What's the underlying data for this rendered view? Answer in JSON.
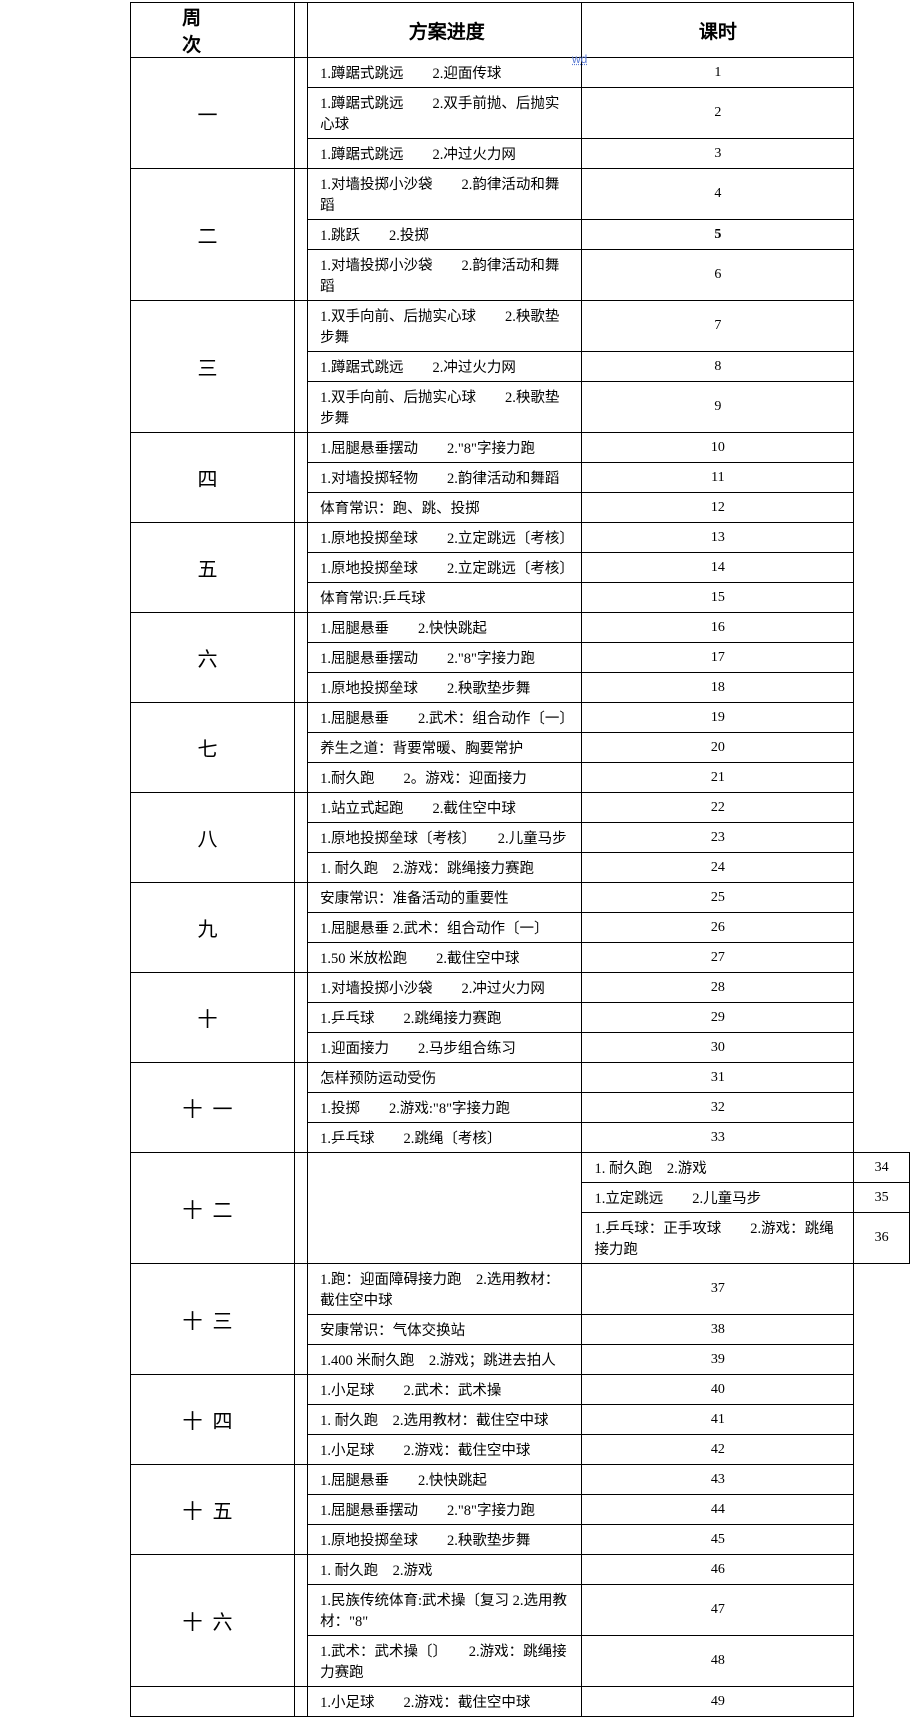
{
  "watermark": "wd",
  "header": {
    "week": "周 次",
    "plan": "方案进度",
    "hour": "课时"
  },
  "weeks": [
    {
      "label": "一",
      "rows": [
        {
          "plan": "1.蹲踞式跳远　　2.迎面传球",
          "hour": "1"
        },
        {
          "plan": "1.蹲踞式跳远　　2.双手前抛、后抛实心球",
          "hour": "2"
        },
        {
          "plan": "1.蹲踞式跳远　　2.冲过火力网",
          "hour": "3"
        }
      ]
    },
    {
      "label": "二",
      "rows": [
        {
          "plan": "1.对墙投掷小沙袋　　2.韵律活动和舞蹈",
          "hour": "4"
        },
        {
          "plan": "1.跳跃　　2.投掷",
          "hour": "5",
          "boldHour": true
        },
        {
          "plan": "1.对墙投掷小沙袋　　2.韵律活动和舞蹈",
          "hour": "6"
        }
      ]
    },
    {
      "label": "三",
      "rows": [
        {
          "plan": "1.双手向前、后抛实心球　　2.秧歌垫步舞",
          "hour": "7"
        },
        {
          "plan": "1.蹲踞式跳远　　2.冲过火力网",
          "hour": "8"
        },
        {
          "plan": "1.双手向前、后抛实心球　　2.秧歌垫步舞",
          "hour": "9"
        }
      ]
    },
    {
      "label": "四",
      "rows": [
        {
          "plan": "1.屈腿悬垂摆动　　2.\"8\"字接力跑",
          "hour": "10"
        },
        {
          "plan": "1.对墙投掷轻物　　2.韵律活动和舞蹈",
          "hour": "11"
        },
        {
          "plan": "体育常识：跑、跳、投掷",
          "hour": "12"
        }
      ]
    },
    {
      "label": "五",
      "rows": [
        {
          "plan": "1.原地投掷垒球　　2.立定跳远〔考核〕",
          "hour": "13"
        },
        {
          "plan": "1.原地投掷垒球　　2.立定跳远〔考核〕",
          "hour": "14"
        },
        {
          "plan": "体育常识:乒乓球",
          "hour": "15"
        }
      ]
    },
    {
      "label": "六",
      "rows": [
        {
          "plan": "1.屈腿悬垂　　2.快快跳起",
          "hour": "16"
        },
        {
          "plan": "1.屈腿悬垂摆动　　2.\"8\"字接力跑",
          "hour": "17"
        },
        {
          "plan": "1.原地投掷垒球　　2.秧歌垫步舞",
          "hour": "18"
        }
      ]
    },
    {
      "label": "七",
      "rows": [
        {
          "plan": "1.屈腿悬垂　　2.武术：组合动作〔一〕",
          "hour": "19"
        },
        {
          "plan": "养生之道：背要常暖、胸要常护",
          "hour": "20"
        },
        {
          "plan": "1.耐久跑　　2。游戏：迎面接力",
          "hour": "21"
        }
      ]
    },
    {
      "label": "八",
      "rows": [
        {
          "plan": "1.站立式起跑　　2.截住空中球",
          "hour": "22"
        },
        {
          "plan": "1.原地投掷垒球〔考核〕　　2.儿童马步",
          "hour": "23"
        },
        {
          "plan": "1. 耐久跑　2.游戏：跳绳接力赛跑",
          "hour": "24"
        }
      ]
    },
    {
      "label": "九",
      "rows": [
        {
          "plan": "安康常识：准备活动的重要性",
          "hour": "25"
        },
        {
          "plan": "1.屈腿悬垂 2.武术：组合动作〔一〕",
          "hour": "26"
        },
        {
          "plan": "1.50 米放松跑　　2.截住空中球",
          "hour": "27"
        }
      ]
    },
    {
      "label": "十",
      "rows": [
        {
          "plan": "1.对墙投掷小沙袋　　2.冲过火力网",
          "hour": "28"
        },
        {
          "plan": "1.乒乓球　　2.跳绳接力赛跑",
          "hour": "29"
        },
        {
          "plan": "1.迎面接力　　2.马步组合练习",
          "hour": "30"
        }
      ]
    },
    {
      "label": "十一",
      "rows": [
        {
          "plan": "怎样预防运动受伤",
          "hour": "31"
        },
        {
          "plan": "1.投掷　　2.游戏:\"8\"字接力跑",
          "hour": "32"
        },
        {
          "plan": "1.乒乓球　　2.跳绳〔考核〕",
          "hour": "33"
        }
      ]
    },
    {
      "label": "十二",
      "spacerSplit": true,
      "rows": [
        {
          "plan": "1. 耐久跑　2.游戏",
          "hour": "34"
        },
        {
          "plan": "1.立定跳远　　2.儿童马步",
          "hour": "35"
        },
        {
          "plan": "1.乒乓球：正手攻球　　2.游戏：跳绳接力跑",
          "hour": "36"
        }
      ]
    },
    {
      "label": "十三",
      "rows": [
        {
          "plan": "1.跑：迎面障碍接力跑　2.选用教材：截住空中球",
          "hour": "37"
        },
        {
          "plan": "安康常识：气体交换站",
          "hour": "38"
        },
        {
          "plan": "1.400 米耐久跑　2.游戏；跳进去拍人",
          "hour": "39"
        }
      ]
    },
    {
      "label": "十四",
      "rows": [
        {
          "plan": "1.小足球　　2.武术：武术操",
          "hour": "40"
        },
        {
          "plan": "1. 耐久跑　2.选用教材：截住空中球",
          "hour": "41"
        },
        {
          "plan": "1.小足球　　2.游戏：截住空中球",
          "hour": "42"
        }
      ]
    },
    {
      "label": "十五",
      "rows": [
        {
          "plan": "1.屈腿悬垂　　2.快快跳起",
          "hour": "43"
        },
        {
          "plan": "1.屈腿悬垂摆动　　2.\"8\"字接力跑",
          "hour": "44"
        },
        {
          "plan": "1.原地投掷垒球　　2.秧歌垫步舞",
          "hour": "45"
        }
      ]
    },
    {
      "label": "十六",
      "rows": [
        {
          "plan": "1. 耐久跑　2.游戏",
          "hour": "46"
        },
        {
          "plan": "1.民族传统体育:武术操〔复习 2.选用教材：\"8\"",
          "hour": "47"
        },
        {
          "plan": "1.武术：武术操〔〕　　2.游戏：跳绳接力赛跑",
          "hour": "48"
        }
      ]
    },
    {
      "label": "",
      "partial": true,
      "rows": [
        {
          "plan": "1.小足球　　2.游戏：截住空中球",
          "hour": "49"
        }
      ]
    }
  ]
}
